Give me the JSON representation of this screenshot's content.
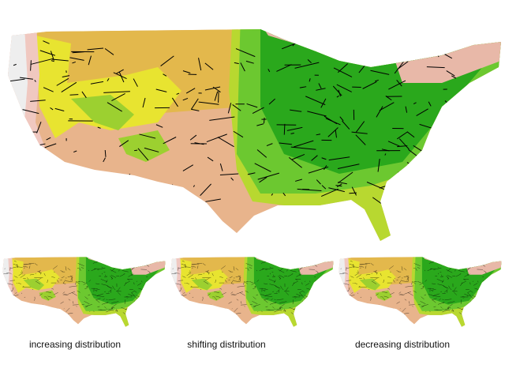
{
  "captions": [
    "increasing distribution",
    "shifting distribution",
    "decreasing distribution"
  ]
}
